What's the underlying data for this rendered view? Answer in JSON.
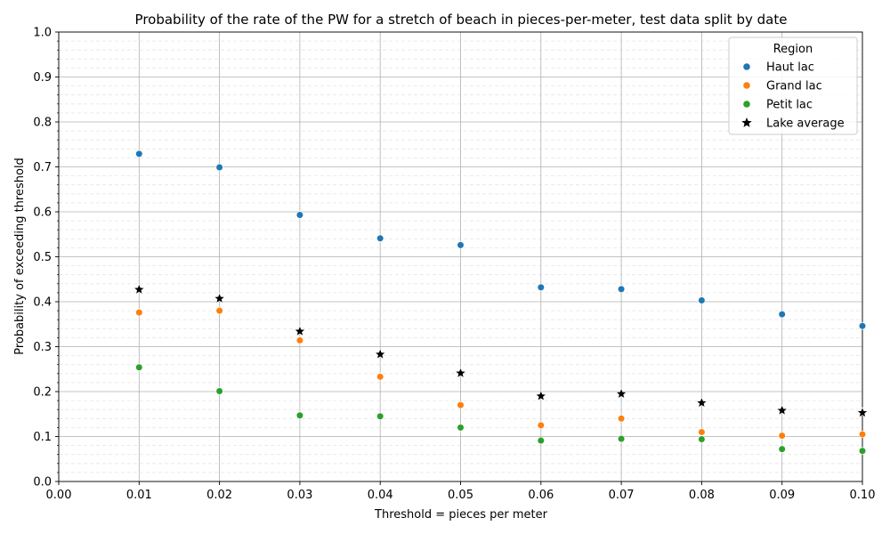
{
  "chart_data": {
    "type": "scatter",
    "title": "Probability of the rate of the PW for a stretch of beach in pieces-per-meter, test data split by date",
    "xlabel": "Threshold = pieces per meter",
    "ylabel": "Probability of exceeding threshold",
    "xlim": [
      0.0,
      0.1
    ],
    "ylim": [
      0.0,
      1.0
    ],
    "x_ticks": [
      "0.00",
      "0.01",
      "0.02",
      "0.03",
      "0.04",
      "0.05",
      "0.06",
      "0.07",
      "0.08",
      "0.09",
      "0.10"
    ],
    "y_ticks": [
      "0.0",
      "0.1",
      "0.2",
      "0.3",
      "0.4",
      "0.5",
      "0.6",
      "0.7",
      "0.8",
      "0.9",
      "1.0"
    ],
    "grid": true,
    "legend_title": "Region",
    "legend_position": "top-right",
    "x": [
      0.01,
      0.02,
      0.03,
      0.04,
      0.05,
      0.06,
      0.07,
      0.08,
      0.09,
      0.1
    ],
    "series": [
      {
        "name": "Haut lac",
        "color": "#1f77b4",
        "marker": "circle",
        "values": [
          0.729,
          0.699,
          0.593,
          0.541,
          0.526,
          0.432,
          0.428,
          0.403,
          0.372,
          0.346
        ]
      },
      {
        "name": "Grand lac",
        "color": "#ff7f0e",
        "marker": "circle",
        "values": [
          0.376,
          0.38,
          0.314,
          0.233,
          0.17,
          0.125,
          0.14,
          0.11,
          0.102,
          0.105
        ]
      },
      {
        "name": "Petit lac",
        "color": "#2ca02c",
        "marker": "circle",
        "values": [
          0.254,
          0.201,
          0.147,
          0.145,
          0.12,
          0.091,
          0.095,
          0.094,
          0.072,
          0.068
        ]
      },
      {
        "name": "Lake average",
        "color": "#000000",
        "marker": "star",
        "values": [
          0.427,
          0.407,
          0.334,
          0.283,
          0.241,
          0.19,
          0.195,
          0.175,
          0.158,
          0.153
        ]
      }
    ]
  }
}
